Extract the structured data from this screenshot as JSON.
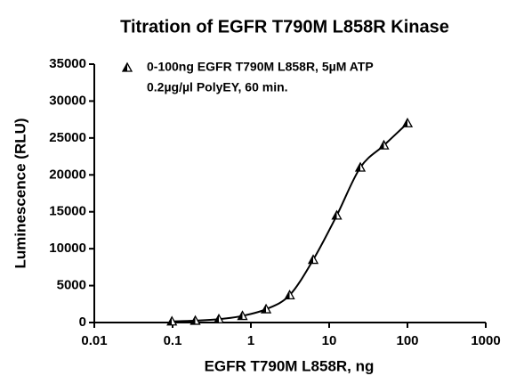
{
  "chart_data": {
    "type": "scatter",
    "title": "Titration of EGFR T790M L858R Kinase",
    "xlabel": "EGFR T790M L858R, ng",
    "ylabel": "Luminescence (RLU)",
    "xscale": "log",
    "xlim": [
      0.01,
      1000
    ],
    "xticks": [
      0.01,
      0.1,
      1,
      10,
      100,
      1000
    ],
    "ylim": [
      0,
      35000
    ],
    "yticks": [
      0,
      5000,
      10000,
      15000,
      20000,
      25000,
      30000,
      35000
    ],
    "series": [
      {
        "name": [
          "0-100ng EGFR T790M L858R, 5µM ATP",
          "0.2µg/µl PolyEY, 60 min."
        ],
        "color": "#000000",
        "x": [
          0.098,
          0.195,
          0.39,
          0.78,
          1.5625,
          3.125,
          6.25,
          12.5,
          25,
          50,
          100
        ],
        "values": [
          150,
          250,
          450,
          900,
          1800,
          3700,
          8500,
          14500,
          21000,
          24000,
          27000
        ]
      }
    ]
  }
}
